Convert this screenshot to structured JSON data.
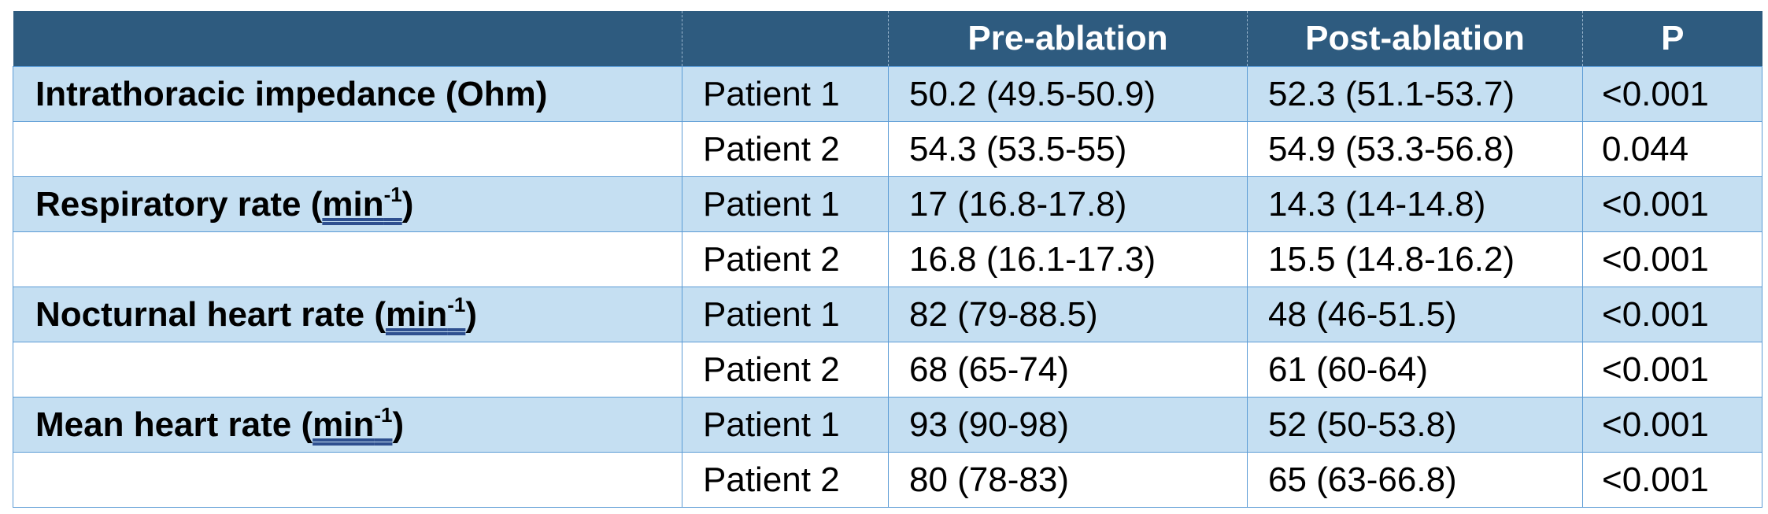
{
  "table": {
    "headers": [
      "",
      "",
      "Pre-ablation",
      "Post-ablation",
      "P"
    ],
    "rows": [
      {
        "metric": "Intrathoracic impedance (Ohm)",
        "patient": "Patient 1",
        "pre": "50.2 (49.5-50.9)",
        "post": "52.3 (51.1-53.7)",
        "p": "<0.001"
      },
      {
        "metric": "",
        "patient": "Patient 2",
        "pre": "54.3 (53.5-55)",
        "post": "54.9 (53.3-56.8)",
        "p": "0.044"
      },
      {
        "metric_prefix": "Respiratory rate (",
        "metric_unit": "min",
        "metric_sup": "-1",
        "metric_suffix": ")",
        "patient": "Patient 1",
        "pre": "17 (16.8-17.8)",
        "post": "14.3 (14-14.8)",
        "p": "<0.001"
      },
      {
        "metric": "",
        "patient": "Patient 2",
        "pre": "16.8 (16.1-17.3)",
        "post": "15.5 (14.8-16.2)",
        "p": "<0.001"
      },
      {
        "metric_prefix": "Nocturnal heart rate (",
        "metric_unit": "min",
        "metric_sup": "-1",
        "metric_suffix": ")",
        "patient": "Patient 1",
        "pre": "82 (79-88.5)",
        "post": "48 (46-51.5)",
        "p": "<0.001"
      },
      {
        "metric": "",
        "patient": "Patient 2",
        "pre": "68 (65-74)",
        "post": "61 (60-64)",
        "p": "<0.001"
      },
      {
        "metric_prefix": "Mean heart rate (",
        "metric_unit": "min",
        "metric_sup": "-1",
        "metric_suffix": ")",
        "patient": "Patient 1",
        "pre": "93 (90-98)",
        "post": "52 (50-53.8)",
        "p": "<0.001"
      },
      {
        "metric": "",
        "patient": "Patient 2",
        "pre": "80 (78-83)",
        "post": "65 (63-66.8)",
        "p": "<0.001"
      }
    ]
  },
  "colors": {
    "header_bg": "#2e5b7f",
    "header_text": "#ffffff",
    "shaded_row": "#c5dff2",
    "plain_row": "#ffffff",
    "grid_line": "#5b9bd5"
  }
}
